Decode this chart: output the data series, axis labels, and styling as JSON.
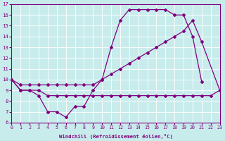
{
  "xlabel": "Windchill (Refroidissement éolien,°C)",
  "background_color": "#c8ecec",
  "line_color": "#800080",
  "ylim": [
    6,
    17
  ],
  "xlim": [
    0,
    23
  ],
  "series1_x": [
    0,
    1,
    2,
    3,
    4,
    5,
    6,
    7,
    8,
    9,
    10,
    11,
    12,
    13,
    14,
    15,
    16,
    17,
    18,
    19,
    20,
    21
  ],
  "series1_y": [
    10,
    9,
    9,
    8.5,
    7,
    7,
    6.5,
    7.5,
    7.5,
    9,
    10,
    13,
    15.5,
    16.5,
    16.5,
    16.5,
    16.5,
    16.5,
    16,
    16,
    14,
    9.8
  ],
  "series2_x": [
    0,
    1,
    2,
    3,
    4,
    5,
    6,
    7,
    8,
    9,
    10,
    11,
    12,
    13,
    14,
    15,
    16,
    17,
    18,
    19,
    20,
    21,
    22,
    23
  ],
  "series2_y": [
    10,
    9,
    9,
    9,
    8.5,
    8.5,
    8.5,
    8.5,
    8.5,
    8.5,
    8.5,
    8.5,
    8.5,
    8.5,
    8.5,
    8.5,
    8.5,
    8.5,
    8.5,
    8.5,
    8.5,
    8.5,
    8.5,
    9
  ],
  "series3_x": [
    0,
    1,
    2,
    3,
    4,
    5,
    6,
    7,
    8,
    9,
    10,
    11,
    12,
    13,
    14,
    15,
    16,
    17,
    18,
    19,
    20,
    21,
    22,
    23
  ],
  "series3_y": [
    10,
    9.5,
    9.5,
    9.5,
    9.5,
    9.5,
    9.5,
    9.5,
    9.5,
    9.5,
    10,
    10.5,
    11,
    11.5,
    12,
    12.5,
    13,
    13.5,
    14,
    14.5,
    15.5,
    13.5,
    null,
    9
  ]
}
